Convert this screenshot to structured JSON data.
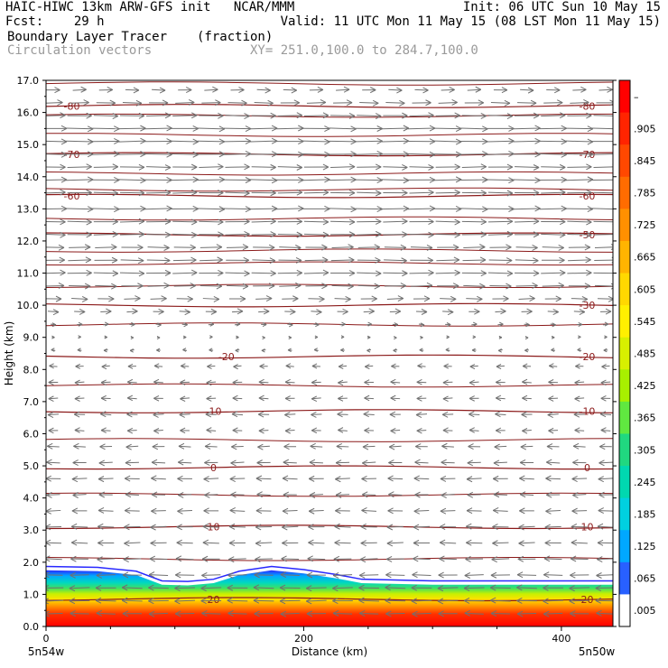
{
  "header": {
    "line1_left": "HAIC-HIWC 13km ARW-GFS init   NCAR/MMM",
    "line1_right": "Init: 06 UTC Sun 10 May 15",
    "line2_left": "Fcst:    29 h",
    "line2_right": "Valid: 11 UTC Mon 11 May 15 (08 LST Mon 11 May 15)",
    "line3_left": "Boundary Layer Tracer",
    "line3_mid": "(fraction)",
    "line4_left": "Circulation vectors",
    "line4_mid": "XY= 251.0,100.0 to 284.7,100.0"
  },
  "chart_data": {
    "type": "heatmap",
    "xlabel": "Distance (km)",
    "ylabel": "Height (km)",
    "xlim": [
      0,
      440
    ],
    "ylim": [
      0,
      17
    ],
    "x_ticks": [
      "0",
      "200",
      "400"
    ],
    "y_ticks": [
      "0.0",
      "1.0",
      "2.0",
      "3.0",
      "4.0",
      "5.0",
      "6.0",
      "7.0",
      "8.0",
      "9.0",
      "10.0",
      "11.0",
      "12.0",
      "13.0",
      "14.0",
      "15.0",
      "16.0",
      "17.0"
    ],
    "x_endpoint_labels": [
      "5n54w",
      "5n50w"
    ],
    "colorbar": {
      "labels": [
        "–",
        ".905",
        ".845",
        ".785",
        ".725",
        ".665",
        ".605",
        ".545",
        ".485",
        ".425",
        ".365",
        ".305",
        ".245",
        ".185",
        ".125",
        ".065",
        ".005"
      ],
      "colors": [
        "#ff0000",
        "#ff2400",
        "#ff4800",
        "#ff6c00",
        "#ff9000",
        "#ffb400",
        "#ffd800",
        "#fff000",
        "#d8f000",
        "#a8f000",
        "#60e840",
        "#20d880",
        "#00d8b0",
        "#00d0e0",
        "#00a8ff",
        "#2860ff",
        "#ffffff"
      ]
    },
    "tracer_layer_top_km": [
      {
        "x": 0,
        "z": 1.75
      },
      {
        "x": 40,
        "z": 1.72
      },
      {
        "x": 70,
        "z": 1.6
      },
      {
        "x": 90,
        "z": 1.3
      },
      {
        "x": 110,
        "z": 1.28
      },
      {
        "x": 130,
        "z": 1.35
      },
      {
        "x": 150,
        "z": 1.6
      },
      {
        "x": 175,
        "z": 1.75
      },
      {
        "x": 200,
        "z": 1.65
      },
      {
        "x": 225,
        "z": 1.5
      },
      {
        "x": 245,
        "z": 1.35
      },
      {
        "x": 300,
        "z": 1.3
      },
      {
        "x": 380,
        "z": 1.3
      },
      {
        "x": 440,
        "z": 1.3
      }
    ],
    "temperature_contours": [
      {
        "label": "-80",
        "z": 16.2,
        "label_x": [
          20,
          420
        ]
      },
      {
        "label": "-70",
        "z": 14.7,
        "label_x": [
          20,
          420
        ]
      },
      {
        "label": "-60",
        "z": 13.4,
        "label_x": [
          20,
          420
        ]
      },
      {
        "label": "-50",
        "z": 12.2,
        "label_x": [
          420
        ]
      },
      {
        "label": "-30",
        "z": 10.0,
        "label_x": [
          420
        ]
      },
      {
        "label": "-20",
        "z": 8.4,
        "label_x": [
          140,
          420
        ]
      },
      {
        "label": "-10",
        "z": 6.7,
        "label_x": [
          130,
          420
        ]
      },
      {
        "label": "0",
        "z": 4.95,
        "label_x": [
          130,
          420
        ]
      },
      {
        "label": "10",
        "z": 3.1,
        "label_x": [
          130,
          420
        ]
      },
      {
        "label": "20",
        "z": 0.85,
        "label_x": [
          130,
          420
        ]
      }
    ],
    "unlabeled_contour_z": [
      16.9,
      15.9,
      15.3,
      14.1,
      13.6,
      12.7,
      11.7,
      11.3,
      10.6,
      9.4,
      7.5,
      5.8,
      4.1,
      2.1
    ],
    "wind_rows": [
      {
        "z": 16.7,
        "u": 0.5
      },
      {
        "z": 16.3,
        "u": 0.7
      },
      {
        "z": 15.9,
        "u": 0.9
      },
      {
        "z": 15.5,
        "u": 1.0
      },
      {
        "z": 15.1,
        "u": 1.0
      },
      {
        "z": 14.7,
        "u": 1.0
      },
      {
        "z": 14.3,
        "u": 0.9
      },
      {
        "z": 13.9,
        "u": 1.0
      },
      {
        "z": 13.5,
        "u": 0.9
      },
      {
        "z": 13.0,
        "u": 1.0
      },
      {
        "z": 12.6,
        "u": 0.9
      },
      {
        "z": 12.2,
        "u": 0.9
      },
      {
        "z": 11.8,
        "u": 0.8
      },
      {
        "z": 11.4,
        "u": 0.85
      },
      {
        "z": 11.0,
        "u": 0.9
      },
      {
        "z": 10.6,
        "u": 0.8
      },
      {
        "z": 10.2,
        "u": 0.6
      },
      {
        "z": 9.8,
        "u": 0.4
      },
      {
        "z": 9.4,
        "u": 0.2
      },
      {
        "z": 9.0,
        "u": 0.1
      },
      {
        "z": 8.6,
        "u": -0.15
      },
      {
        "z": 8.1,
        "u": -0.3
      },
      {
        "z": 7.6,
        "u": -0.35
      },
      {
        "z": 7.1,
        "u": -0.35
      },
      {
        "z": 6.6,
        "u": -0.4
      },
      {
        "z": 6.1,
        "u": -0.35
      },
      {
        "z": 5.6,
        "u": -0.45
      },
      {
        "z": 5.1,
        "u": -0.5
      },
      {
        "z": 4.6,
        "u": -0.55
      },
      {
        "z": 4.1,
        "u": -0.5
      },
      {
        "z": 3.6,
        "u": -0.55
      },
      {
        "z": 3.1,
        "u": -0.6
      },
      {
        "z": 2.6,
        "u": -0.6
      },
      {
        "z": 2.1,
        "u": -0.65
      },
      {
        "z": 1.6,
        "u": -0.7
      },
      {
        "z": 1.2,
        "u": -0.75
      },
      {
        "z": 0.8,
        "u": -0.75
      },
      {
        "z": 0.4,
        "u": -0.7
      }
    ],
    "grid": false
  }
}
